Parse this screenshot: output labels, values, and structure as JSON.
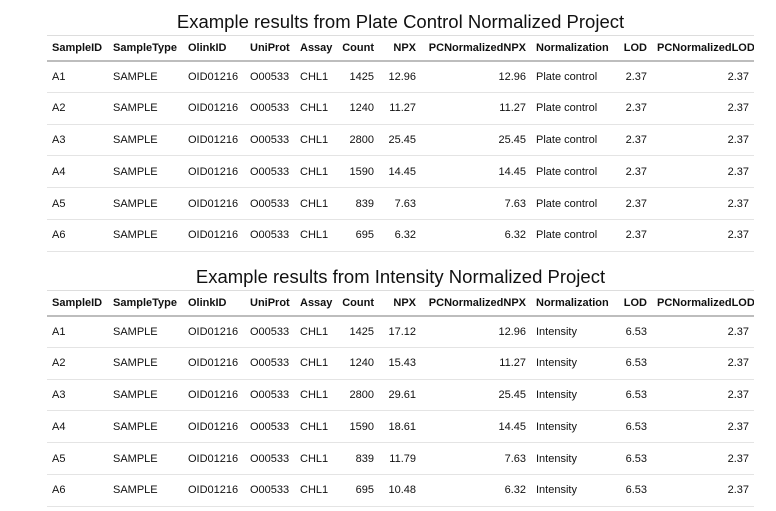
{
  "columns": [
    "SampleID",
    "SampleType",
    "OlinkID",
    "UniProt",
    "Assay",
    "Count",
    "NPX",
    "PCNormalizedNPX",
    "Normalization",
    "LOD",
    "PCNormalizedLOD"
  ],
  "tables": [
    {
      "caption": "Example results from Plate Control Normalized Project",
      "rows": [
        [
          "A1",
          "SAMPLE",
          "OID01216",
          "O00533",
          "CHL1",
          "1425",
          "12.96",
          "12.96",
          "Plate control",
          "2.37",
          "2.37"
        ],
        [
          "A2",
          "SAMPLE",
          "OID01216",
          "O00533",
          "CHL1",
          "1240",
          "11.27",
          "11.27",
          "Plate control",
          "2.37",
          "2.37"
        ],
        [
          "A3",
          "SAMPLE",
          "OID01216",
          "O00533",
          "CHL1",
          "2800",
          "25.45",
          "25.45",
          "Plate control",
          "2.37",
          "2.37"
        ],
        [
          "A4",
          "SAMPLE",
          "OID01216",
          "O00533",
          "CHL1",
          "1590",
          "14.45",
          "14.45",
          "Plate control",
          "2.37",
          "2.37"
        ],
        [
          "A5",
          "SAMPLE",
          "OID01216",
          "O00533",
          "CHL1",
          "839",
          "7.63",
          "7.63",
          "Plate control",
          "2.37",
          "2.37"
        ],
        [
          "A6",
          "SAMPLE",
          "OID01216",
          "O00533",
          "CHL1",
          "695",
          "6.32",
          "6.32",
          "Plate control",
          "2.37",
          "2.37"
        ]
      ]
    },
    {
      "caption": "Example results from Intensity Normalized Project",
      "rows": [
        [
          "A1",
          "SAMPLE",
          "OID01216",
          "O00533",
          "CHL1",
          "1425",
          "17.12",
          "12.96",
          "Intensity",
          "6.53",
          "2.37"
        ],
        [
          "A2",
          "SAMPLE",
          "OID01216",
          "O00533",
          "CHL1",
          "1240",
          "15.43",
          "11.27",
          "Intensity",
          "6.53",
          "2.37"
        ],
        [
          "A3",
          "SAMPLE",
          "OID01216",
          "O00533",
          "CHL1",
          "2800",
          "29.61",
          "25.45",
          "Intensity",
          "6.53",
          "2.37"
        ],
        [
          "A4",
          "SAMPLE",
          "OID01216",
          "O00533",
          "CHL1",
          "1590",
          "18.61",
          "14.45",
          "Intensity",
          "6.53",
          "2.37"
        ],
        [
          "A5",
          "SAMPLE",
          "OID01216",
          "O00533",
          "CHL1",
          "839",
          "11.79",
          "7.63",
          "Intensity",
          "6.53",
          "2.37"
        ],
        [
          "A6",
          "SAMPLE",
          "OID01216",
          "O00533",
          "CHL1",
          "695",
          "10.48",
          "6.32",
          "Intensity",
          "6.53",
          "2.37"
        ]
      ]
    }
  ]
}
